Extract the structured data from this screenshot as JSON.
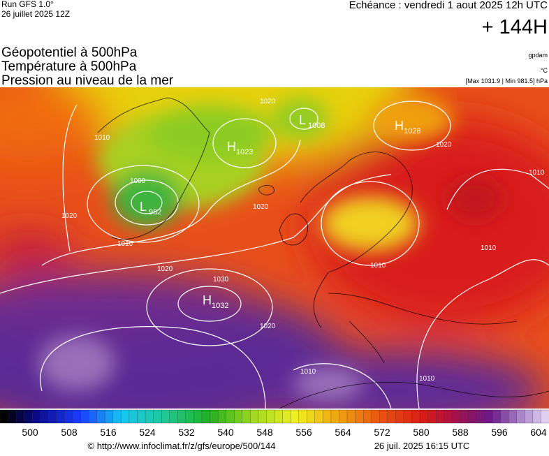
{
  "header": {
    "run": "Run GFS 1.0°",
    "date": "26 juillet 2025 12Z",
    "echeance": "Echéance : vendredi 1 aout 2025 12h UTC",
    "lead": "+ 144H"
  },
  "titles": [
    "Géopotentiel à 500hPa",
    "Température à 500hPa",
    "Pression au niveau de la mer"
  ],
  "units": {
    "geopotential": "gpdam",
    "temperature": "°C",
    "pressure": "[Max 1031.9 | Min 981.5] hPa"
  },
  "centers": [
    {
      "letter": "L",
      "value": "982"
    },
    {
      "letter": "L",
      "value": "1008"
    },
    {
      "letter": "H",
      "value": "1023"
    },
    {
      "letter": "H",
      "value": "1028"
    },
    {
      "letter": "H",
      "value": "1032"
    }
  ],
  "isobars": [
    "1000",
    "1010",
    "1010",
    "1020",
    "1020",
    "1020",
    "1020",
    "1030",
    "1010",
    "1010",
    "1010",
    "1010",
    "1010",
    "1020",
    "1020"
  ],
  "colorbar": [
    500,
    508,
    516,
    524,
    532,
    540,
    548,
    556,
    564,
    572,
    580,
    588,
    596,
    604
  ],
  "footer": {
    "url": "© http://www.infoclimat.fr/z/gfs/europe/500/144",
    "time": "26 juil. 2025 16:15 UTC"
  }
}
